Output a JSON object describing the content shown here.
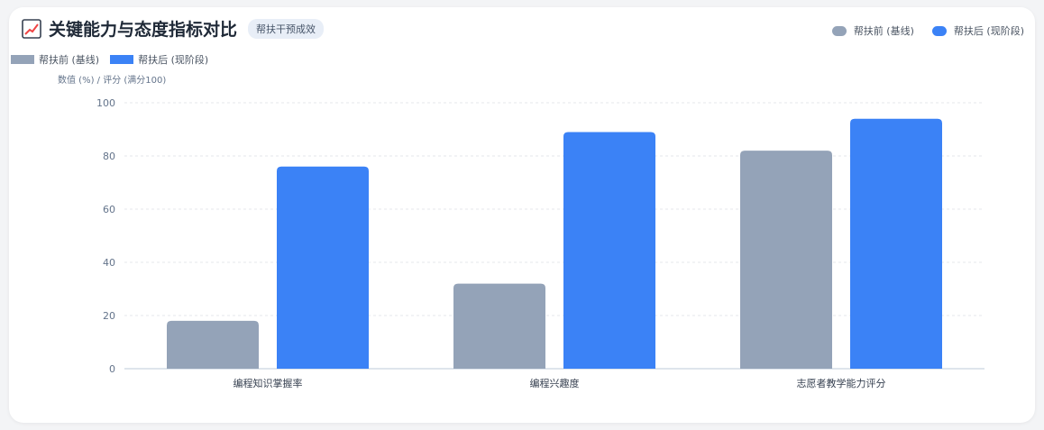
{
  "header": {
    "title": "关键能力与态度指标对比",
    "badge": "帮扶干预成效"
  },
  "legend": {
    "before": "帮扶前 (基线)",
    "after": "帮扶后 (现阶段)"
  },
  "colors": {
    "before": "#94a3b8",
    "after": "#3b82f6",
    "grid": "#e5e7eb",
    "axis": "#cbd5e1"
  },
  "chart_data": {
    "type": "bar",
    "title": "关键能力与态度指标对比",
    "ylabel": "数值 (%) / 评分 (满分100)",
    "xlabel": "",
    "categories": [
      "编程知识掌握率",
      "编程兴趣度",
      "志愿者教学能力评分"
    ],
    "series": [
      {
        "name": "帮扶前 (基线)",
        "values": [
          18,
          32,
          82
        ]
      },
      {
        "name": "帮扶后 (现阶段)",
        "values": [
          76,
          89,
          94
        ]
      }
    ],
    "ylim": [
      0,
      100
    ],
    "yticks": [
      0,
      20,
      40,
      60,
      80,
      100
    ],
    "grid": true,
    "legend": "top-right"
  }
}
